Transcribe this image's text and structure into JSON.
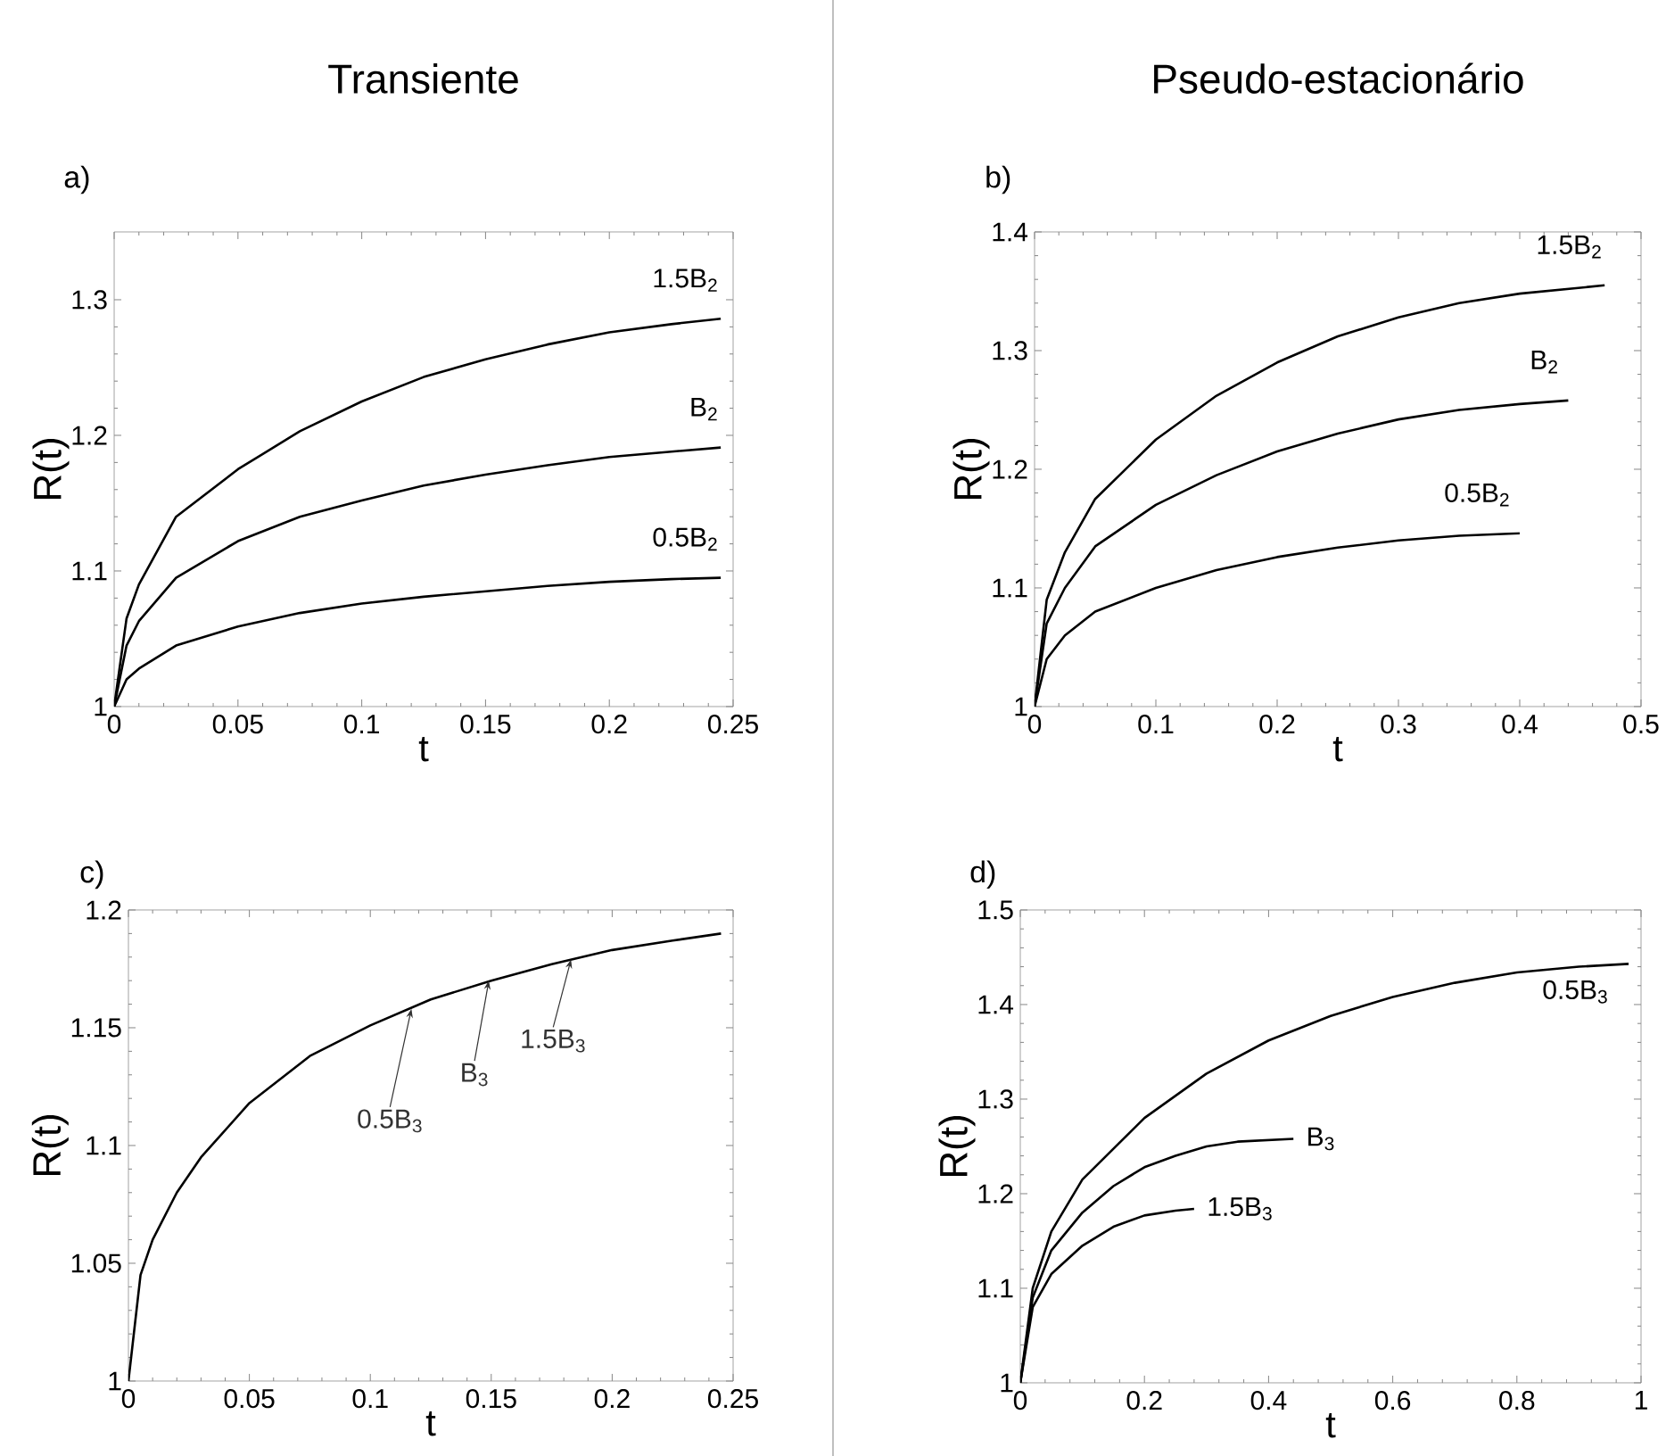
{
  "chart_data": [
    {
      "type": "line",
      "title": "Transiente",
      "annotations": [
        "a)"
      ],
      "xlabel": "t",
      "ylabel": "R(t)",
      "xlim": [
        0,
        0.25
      ],
      "ylim": [
        1,
        1.35
      ],
      "xticks": [
        0,
        0.05,
        0.1,
        0.15,
        0.2,
        0.25
      ],
      "yticks": [
        1,
        1.1,
        1.2,
        1.3
      ],
      "legend": false,
      "grid": false,
      "marker": "none",
      "line_style": "solid",
      "series": [
        {
          "name": "1.5B$_{2}$",
          "color": "#000000",
          "x": [
            0,
            0.005,
            0.01,
            0.025,
            0.05,
            0.075,
            0.1,
            0.125,
            0.15,
            0.175,
            0.2,
            0.225,
            0.245
          ],
          "values": [
            1,
            1.065,
            1.09,
            1.14,
            1.175,
            1.203,
            1.225,
            1.243,
            1.256,
            1.267,
            1.276,
            1.282,
            1.286
          ]
        },
        {
          "name": "B$_{2}$",
          "color": "#000000",
          "x": [
            0,
            0.005,
            0.01,
            0.025,
            0.05,
            0.075,
            0.1,
            0.125,
            0.15,
            0.175,
            0.2,
            0.225,
            0.245
          ],
          "values": [
            1,
            1.045,
            1.063,
            1.095,
            1.122,
            1.14,
            1.152,
            1.163,
            1.171,
            1.178,
            1.184,
            1.188,
            1.191
          ]
        },
        {
          "name": "0.5B$_{2}$",
          "color": "#000000",
          "x": [
            0,
            0.005,
            0.01,
            0.025,
            0.05,
            0.075,
            0.1,
            0.125,
            0.15,
            0.175,
            0.2,
            0.225,
            0.245
          ],
          "values": [
            1,
            1.02,
            1.028,
            1.045,
            1.059,
            1.069,
            1.076,
            1.081,
            1.085,
            1.089,
            1.092,
            1.094,
            1.095
          ]
        }
      ]
    },
    {
      "type": "line",
      "title": "Pseudo-estacionário",
      "annotations": [
        "b)"
      ],
      "xlabel": "t",
      "ylabel": "R(t)",
      "xlim": [
        0,
        0.5
      ],
      "ylim": [
        1,
        1.4
      ],
      "xticks": [
        0,
        0.1,
        0.2,
        0.3,
        0.4,
        0.5
      ],
      "yticks": [
        1,
        1.1,
        1.2,
        1.3,
        1.4
      ],
      "legend": false,
      "grid": false,
      "marker": "none",
      "line_style": "solid",
      "series": [
        {
          "name": "1.5B$_{2}$",
          "color": "#000000",
          "x": [
            0,
            0.01,
            0.025,
            0.05,
            0.1,
            0.15,
            0.2,
            0.25,
            0.3,
            0.35,
            0.4,
            0.47
          ],
          "values": [
            1,
            1.09,
            1.13,
            1.175,
            1.225,
            1.262,
            1.29,
            1.312,
            1.328,
            1.34,
            1.348,
            1.355
          ]
        },
        {
          "name": "B$_{2}$",
          "color": "#000000",
          "x": [
            0,
            0.01,
            0.025,
            0.05,
            0.1,
            0.15,
            0.2,
            0.25,
            0.3,
            0.35,
            0.4,
            0.44
          ],
          "values": [
            1,
            1.07,
            1.1,
            1.135,
            1.17,
            1.195,
            1.215,
            1.23,
            1.242,
            1.25,
            1.255,
            1.258
          ]
        },
        {
          "name": "0.5B$_{2}$",
          "color": "#000000",
          "x": [
            0,
            0.01,
            0.025,
            0.05,
            0.1,
            0.15,
            0.2,
            0.25,
            0.3,
            0.35,
            0.4
          ],
          "values": [
            1,
            1.04,
            1.06,
            1.08,
            1.1,
            1.115,
            1.126,
            1.134,
            1.14,
            1.144,
            1.146
          ]
        }
      ]
    },
    {
      "type": "line",
      "annotations": [
        "c)",
        {
          "text": "0.5B$_{3}$",
          "x": 0.117,
          "y": 1.158
        },
        {
          "text": "B$_{3}$",
          "x": 0.149,
          "y": 1.17
        },
        {
          "text": "1.5B$_{3}$",
          "x": 0.183,
          "y": 1.179
        }
      ],
      "xlabel": "t",
      "ylabel": "R(t)",
      "xlim": [
        0,
        0.25
      ],
      "ylim": [
        1,
        1.2
      ],
      "xticks": [
        0,
        0.05,
        0.1,
        0.15,
        0.2,
        0.25
      ],
      "yticks": [
        1,
        1.05,
        1.1,
        1.15,
        1.2
      ],
      "legend": false,
      "grid": false,
      "marker": "none",
      "line_style": "solid",
      "series": [
        {
          "color": "#000000",
          "x": [
            0,
            0.005,
            0.01,
            0.02,
            0.03,
            0.05,
            0.075,
            0.1,
            0.125,
            0.15,
            0.175,
            0.2,
            0.225,
            0.245
          ],
          "values": [
            1,
            1.045,
            1.06,
            1.08,
            1.095,
            1.118,
            1.138,
            1.151,
            1.162,
            1.17,
            1.177,
            1.183,
            1.187,
            1.19
          ]
        }
      ]
    },
    {
      "type": "line",
      "annotations": [
        "d)"
      ],
      "xlabel": "t",
      "ylabel": "R(t)",
      "xlim": [
        0,
        1
      ],
      "ylim": [
        1,
        1.5
      ],
      "xticks": [
        0,
        0.2,
        0.4,
        0.6,
        0.8,
        1
      ],
      "yticks": [
        1,
        1.1,
        1.2,
        1.3,
        1.4,
        1.5
      ],
      "legend": false,
      "grid": false,
      "marker": "none",
      "line_style": "solid",
      "series": [
        {
          "name": "0.5B$_{3}$",
          "color": "#000000",
          "x": [
            0,
            0.02,
            0.05,
            0.1,
            0.2,
            0.3,
            0.4,
            0.5,
            0.6,
            0.7,
            0.8,
            0.9,
            0.98
          ],
          "values": [
            1,
            1.1,
            1.16,
            1.215,
            1.28,
            1.327,
            1.362,
            1.388,
            1.408,
            1.423,
            1.434,
            1.44,
            1.443
          ]
        },
        {
          "name": "B$_{3}$",
          "color": "#000000",
          "x": [
            0,
            0.02,
            0.05,
            0.1,
            0.15,
            0.2,
            0.25,
            0.3,
            0.35,
            0.44
          ],
          "values": [
            1,
            1.09,
            1.14,
            1.18,
            1.208,
            1.228,
            1.24,
            1.25,
            1.255,
            1.258
          ]
        },
        {
          "name": "1.5B$_{3}$",
          "color": "#000000",
          "x": [
            0,
            0.02,
            0.05,
            0.1,
            0.15,
            0.2,
            0.25,
            0.28
          ],
          "values": [
            1,
            1.08,
            1.115,
            1.145,
            1.165,
            1.177,
            1.182,
            1.184
          ]
        }
      ]
    }
  ]
}
